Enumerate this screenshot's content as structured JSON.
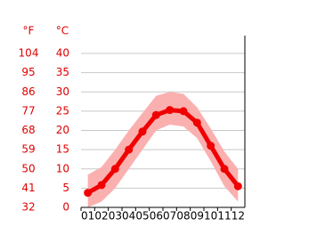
{
  "chart_data": {
    "type": "line",
    "y_label": "°C",
    "y2_label": "°F",
    "categories": [
      "01",
      "02",
      "03",
      "04",
      "05",
      "06",
      "07",
      "08",
      "09",
      "10",
      "11",
      "12"
    ],
    "values": [
      3.8,
      5.8,
      10,
      15,
      19.7,
      24,
      25.3,
      25,
      22,
      16,
      10,
      5.5
    ],
    "upper": [
      8.5,
      10.5,
      15,
      20,
      24.5,
      29,
      30,
      29.5,
      26,
      20.5,
      14.5,
      10
    ],
    "lower": [
      0,
      1.5,
      5,
      10,
      15,
      20,
      21.5,
      21,
      18,
      12,
      5.5,
      1.5
    ],
    "color": "#f00000",
    "band_color": "#fbb0b0",
    "ylim": [
      0,
      40
    ],
    "yticks": [
      0,
      5,
      10,
      15,
      20,
      25,
      30,
      35,
      40
    ],
    "y2lim": [
      32,
      104
    ],
    "y2ticks": [
      32,
      41,
      50,
      59,
      68,
      77,
      86,
      95,
      104
    ],
    "grid": true
  }
}
